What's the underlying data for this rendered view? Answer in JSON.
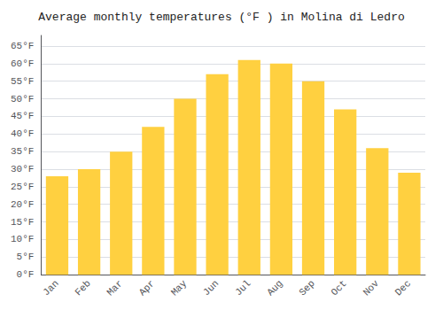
{
  "chart_data": {
    "type": "bar",
    "title": "Average monthly temperatures (°F ) in Molina di Ledro",
    "categories": [
      "Jan",
      "Feb",
      "Mar",
      "Apr",
      "May",
      "Jun",
      "Jul",
      "Aug",
      "Sep",
      "Oct",
      "Nov",
      "Dec"
    ],
    "values": [
      28,
      30,
      35,
      42,
      50,
      57,
      61,
      60,
      55,
      47,
      36,
      29
    ],
    "color": "#FFD040",
    "ylim": [
      0,
      68
    ],
    "yticks": [
      {
        "value": 0,
        "label": "0°F"
      },
      {
        "value": 5,
        "label": "5°F"
      },
      {
        "value": 10,
        "label": "10°F"
      },
      {
        "value": 15,
        "label": "15°F"
      },
      {
        "value": 20,
        "label": "20°F"
      },
      {
        "value": 25,
        "label": "25°F"
      },
      {
        "value": 30,
        "label": "30°F"
      },
      {
        "value": 35,
        "label": "35°F"
      },
      {
        "value": 40,
        "label": "40°F"
      },
      {
        "value": 45,
        "label": "45°F"
      },
      {
        "value": 50,
        "label": "50°F"
      },
      {
        "value": 55,
        "label": "55°F"
      },
      {
        "value": 60,
        "label": "60°F"
      },
      {
        "value": 65,
        "label": "65°F"
      }
    ],
    "grid": true
  }
}
